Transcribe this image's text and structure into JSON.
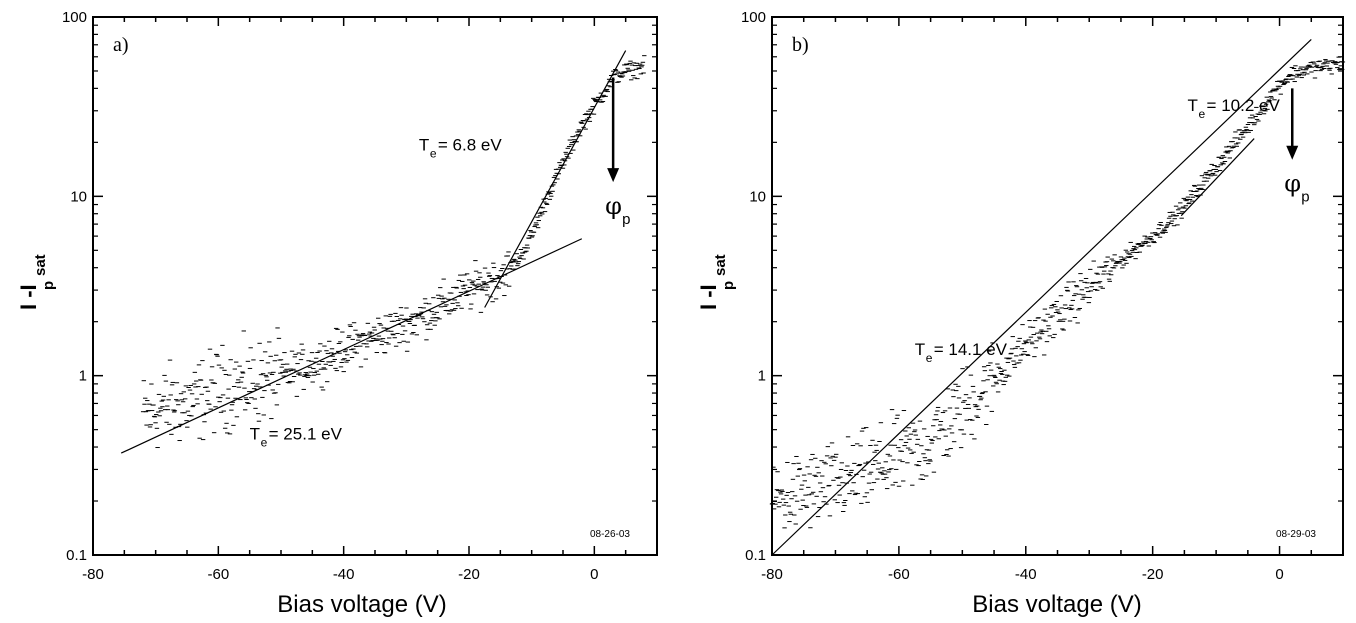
{
  "chart_data": [
    {
      "type": "scatter",
      "panel_label": "a)",
      "date_stamp": "08-26-03",
      "xlabel": "Bias voltage (V)",
      "ylabel_main": "I -I",
      "ylabel_sub1": "p",
      "ylabel_sub2": "sat",
      "xlim": [
        -80,
        10
      ],
      "ylim": [
        0.1,
        100
      ],
      "yscale": "log",
      "xticks": [
        -80,
        -60,
        -40,
        -20,
        0
      ],
      "yticks": [
        0.1,
        1,
        10,
        100
      ],
      "ytick_labels": [
        "0.1",
        "1",
        "10",
        "100"
      ],
      "grid": false,
      "data_profile": [
        [
          -72,
          0.6
        ],
        [
          -68,
          0.68
        ],
        [
          -64,
          0.7
        ],
        [
          -60,
          0.85
        ],
        [
          -56,
          0.88
        ],
        [
          -52,
          0.95
        ],
        [
          -48,
          1.05
        ],
        [
          -44,
          1.2
        ],
        [
          -40,
          1.4
        ],
        [
          -36,
          1.6
        ],
        [
          -32,
          1.8
        ],
        [
          -28,
          2.1
        ],
        [
          -24,
          2.5
        ],
        [
          -20,
          3.0
        ],
        [
          -16,
          3.5
        ],
        [
          -14,
          3.8
        ],
        [
          -12,
          4.5
        ],
        [
          -10,
          6
        ],
        [
          -8,
          9
        ],
        [
          -6,
          13
        ],
        [
          -4,
          18
        ],
        [
          -2,
          25
        ],
        [
          0,
          32
        ],
        [
          2,
          40
        ],
        [
          3,
          46
        ],
        [
          5,
          50
        ],
        [
          8,
          53
        ]
      ],
      "fit_lines": [
        {
          "name": "T_e = 25.1 eV",
          "x": [
            -75.5,
            -2
          ],
          "y": [
            0.37,
            5.8
          ]
        },
        {
          "name": "T_e = 6.8 eV",
          "x": [
            -17.5,
            5
          ],
          "y": [
            2.4,
            65
          ]
        }
      ],
      "annotations": [
        {
          "main": "T",
          "sub": "e",
          "value": " = 6.8 eV",
          "x": -28,
          "y": 18
        },
        {
          "main": "T",
          "sub": "e",
          "value": " = 25.1 eV",
          "x": -55,
          "y": 0.44
        }
      ],
      "arrow": {
        "x": 3,
        "y_from": 46,
        "y_to": 12,
        "label": "φ",
        "label_sub": "p"
      }
    },
    {
      "type": "scatter",
      "panel_label": "b)",
      "date_stamp": "08-29-03",
      "xlabel": "Bias voltage (V)",
      "ylabel_main": "I -I",
      "ylabel_sub1": "p",
      "ylabel_sub2": "sat",
      "xlim": [
        -80,
        10
      ],
      "ylim": [
        0.1,
        100
      ],
      "yscale": "log",
      "xticks": [
        -80,
        -60,
        -40,
        -20,
        0
      ],
      "yticks": [
        0.1,
        1,
        10,
        100
      ],
      "ytick_labels": [
        "0.1",
        "1",
        "10",
        "100"
      ],
      "grid": false,
      "data_profile": [
        [
          -80,
          0.2
        ],
        [
          -76,
          0.22
        ],
        [
          -72,
          0.24
        ],
        [
          -68,
          0.26
        ],
        [
          -64,
          0.3
        ],
        [
          -60,
          0.35
        ],
        [
          -56,
          0.4
        ],
        [
          -52,
          0.55
        ],
        [
          -48,
          0.75
        ],
        [
          -44,
          1.05
        ],
        [
          -40,
          1.5
        ],
        [
          -36,
          2.0
        ],
        [
          -32,
          2.7
        ],
        [
          -28,
          3.6
        ],
        [
          -24,
          4.7
        ],
        [
          -20,
          6.0
        ],
        [
          -16,
          8.0
        ],
        [
          -12,
          12
        ],
        [
          -8,
          18
        ],
        [
          -4,
          27
        ],
        [
          0,
          42
        ],
        [
          2,
          48
        ],
        [
          5,
          52
        ],
        [
          10,
          55
        ]
      ],
      "fit_lines": [
        {
          "name": "T_e = 14.1 eV",
          "x": [
            -80,
            5
          ],
          "y": [
            0.1,
            75
          ]
        },
        {
          "name": "T_e = 10.2 eV",
          "x": [
            -15.5,
            -4
          ],
          "y": [
            7.8,
            21
          ]
        }
      ],
      "annotations": [
        {
          "main": "T",
          "sub": "e",
          "value": " = 14.1 eV",
          "x": -57.5,
          "y": 1.3
        },
        {
          "main": "T",
          "sub": "e",
          "value": " = 10.2 eV",
          "x": -14.5,
          "y": 30
        }
      ],
      "arrow": {
        "x": 2,
        "y_from": 40,
        "y_to": 16,
        "label": "φ",
        "label_sub": "p"
      }
    }
  ]
}
